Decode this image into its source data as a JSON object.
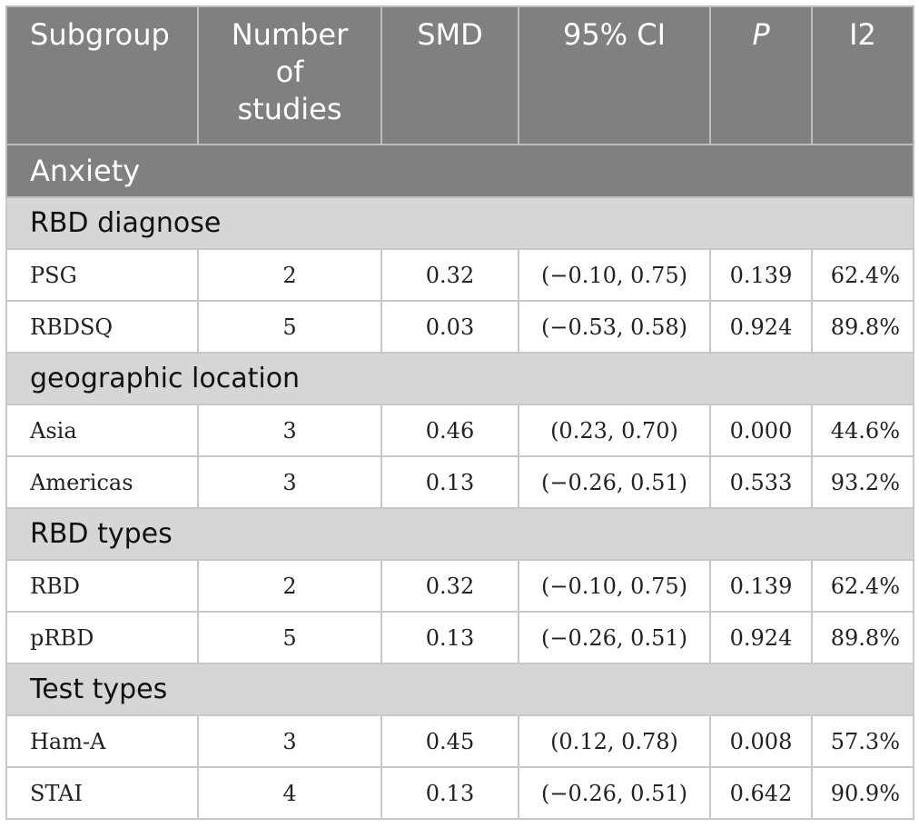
{
  "header": {
    "subgroup": "Subgroup",
    "studies_line1": "Number",
    "studies_line2": "of",
    "studies_line3": "studies",
    "smd": "SMD",
    "ci": "95% CI",
    "p": "P",
    "i2": "I2"
  },
  "section_title": "Anxiety",
  "groups": [
    {
      "title": "RBD diagnose",
      "rows": [
        {
          "name": "PSG",
          "n": "2",
          "smd": "0.32",
          "ci": "(−0.10, 0.75)",
          "p": "0.139",
          "i2": "62.4%"
        },
        {
          "name": "RBDSQ",
          "n": "5",
          "smd": "0.03",
          "ci": "(−0.53, 0.58)",
          "p": "0.924",
          "i2": "89.8%"
        }
      ]
    },
    {
      "title": "geographic location",
      "rows": [
        {
          "name": "Asia",
          "n": "3",
          "smd": "0.46",
          "ci": "(0.23, 0.70)",
          "p": "0.000",
          "i2": "44.6%"
        },
        {
          "name": "Americas",
          "n": "3",
          "smd": "0.13",
          "ci": "(−0.26, 0.51)",
          "p": "0.533",
          "i2": "93.2%"
        }
      ]
    },
    {
      "title": "RBD types",
      "rows": [
        {
          "name": "RBD",
          "n": "2",
          "smd": "0.32",
          "ci": "(−0.10, 0.75)",
          "p": "0.139",
          "i2": "62.4%"
        },
        {
          "name": "pRBD",
          "n": "5",
          "smd": "0.13",
          "ci": "(−0.26, 0.51)",
          "p": "0.924",
          "i2": "89.8%"
        }
      ]
    },
    {
      "title": "Test types",
      "rows": [
        {
          "name": "Ham-A",
          "n": "3",
          "smd": "0.45",
          "ci": "(0.12, 0.78)",
          "p": "0.008",
          "i2": "57.3%"
        },
        {
          "name": "STAI",
          "n": "4",
          "smd": "0.13",
          "ci": "(−0.26, 0.51)",
          "p": "0.642",
          "i2": "90.9%"
        }
      ]
    }
  ]
}
